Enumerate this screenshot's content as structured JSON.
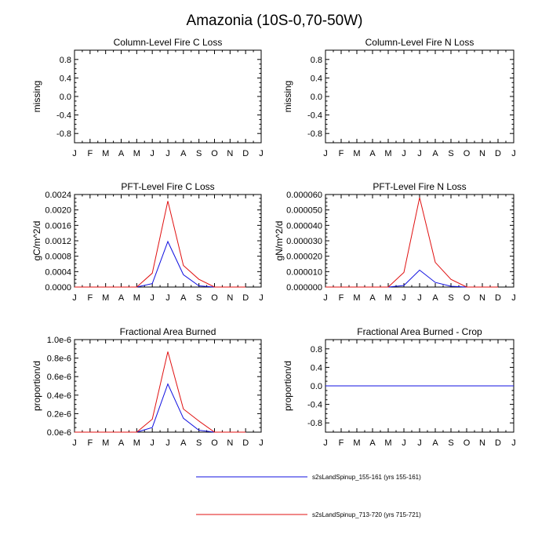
{
  "main_title": "Amazonia (10S-0,70-50W)",
  "months": [
    "J",
    "F",
    "M",
    "A",
    "M",
    "J",
    "J",
    "A",
    "S",
    "O",
    "N",
    "D",
    "J"
  ],
  "colors": {
    "series1": "#1010e0",
    "series2": "#e01010",
    "axis": "#000000"
  },
  "legend": [
    {
      "label": "s2sLandSpinup_155-161 (yrs 155-161)",
      "color": "#1010e0"
    },
    {
      "label": "s2sLandSpinup_713-720 (yrs 715-721)",
      "color": "#e01010"
    }
  ],
  "chart_data": [
    {
      "type": "line",
      "title": "Column-Level Fire C Loss",
      "ylabel": "missing",
      "ylim": [
        -1.0,
        1.0
      ],
      "yticks": [
        -0.8,
        -0.4,
        0.0,
        0.4,
        0.8
      ],
      "ytick_labels": [
        "-0.8",
        "-0.4",
        "0.0",
        "0.4",
        "0.8"
      ],
      "series": []
    },
    {
      "type": "line",
      "title": "Column-Level Fire N Loss",
      "ylabel": "missing",
      "ylim": [
        -1.0,
        1.0
      ],
      "yticks": [
        -0.8,
        -0.4,
        0.0,
        0.4,
        0.8
      ],
      "ytick_labels": [
        "-0.8",
        "-0.4",
        "0.0",
        "0.4",
        "0.8"
      ],
      "series": []
    },
    {
      "type": "line",
      "title": "PFT-Level Fire C Loss",
      "ylabel": "gC/m^2/d",
      "ylim": [
        0,
        0.0024
      ],
      "yticks": [
        0,
        0.0004,
        0.0008,
        0.0012,
        0.0016,
        0.002,
        0.0024
      ],
      "ytick_labels": [
        "0.0000",
        "0.0004",
        "0.0008",
        "0.0012",
        "0.0016",
        "0.0020",
        "0.0024"
      ],
      "series": [
        {
          "name": "s2sLandSpinup_155-161 (yrs 155-161)",
          "values": [
            0,
            0,
            0,
            0,
            0,
            9e-05,
            0.00118,
            0.00032,
            3e-05,
            0,
            0,
            0
          ]
        },
        {
          "name": "s2sLandSpinup_713-720 (yrs 715-721)",
          "values": [
            0,
            0,
            0,
            0,
            0,
            0.00036,
            0.00223,
            0.00056,
            0.0002,
            0,
            0,
            0
          ]
        }
      ]
    },
    {
      "type": "line",
      "title": "PFT-Level Fire N Loss",
      "ylabel": "gN/m^2/d",
      "ylim": [
        0,
        6e-05
      ],
      "yticks": [
        0,
        1e-05,
        2e-05,
        3e-05,
        4e-05,
        5e-05,
        6e-05
      ],
      "ytick_labels": [
        "0.000000",
        "0.000010",
        "0.000020",
        "0.000030",
        "0.000040",
        "0.000050",
        "0.000060"
      ],
      "series": [
        {
          "name": "s2sLandSpinup_155-161 (yrs 155-161)",
          "values": [
            0,
            0,
            0,
            0,
            0,
            1e-06,
            1.1e-05,
            3e-06,
            5e-07,
            0,
            0,
            0
          ]
        },
        {
          "name": "s2sLandSpinup_713-720 (yrs 715-721)",
          "values": [
            0,
            0,
            0,
            0,
            0,
            9.5e-06,
            5.8e-05,
            1.6e-05,
            5e-06,
            0,
            0,
            0
          ]
        }
      ]
    },
    {
      "type": "line",
      "title": "Fractional Area Burned",
      "ylabel": "proportion/d",
      "ylim": [
        0,
        1.0
      ],
      "yticks": [
        0,
        0.2,
        0.4,
        0.6,
        0.8,
        1.0
      ],
      "ytick_labels": [
        "0.0e-6",
        "0.2e-6",
        "0.4e-6",
        "0.6e-6",
        "0.8e-6",
        "1.0e-6"
      ],
      "series": [
        {
          "name": "s2sLandSpinup_155-161 (yrs 155-161)",
          "values": [
            0,
            0,
            0,
            0,
            0,
            0.05,
            0.52,
            0.15,
            0.02,
            0,
            0,
            0
          ]
        },
        {
          "name": "s2sLandSpinup_713-720 (yrs 715-721)",
          "values": [
            0,
            0,
            0,
            0,
            0,
            0.14,
            0.87,
            0.25,
            0.12,
            0,
            0,
            0
          ]
        }
      ]
    },
    {
      "type": "line",
      "title": "Fractional Area Burned - Crop",
      "ylabel": "proportion/d",
      "ylim": [
        -1.0,
        1.0
      ],
      "yticks": [
        -0.8,
        -0.4,
        0.0,
        0.4,
        0.8
      ],
      "ytick_labels": [
        "-0.8",
        "-0.4",
        "0.0",
        "0.4",
        "0.8"
      ],
      "series": [
        {
          "name": "s2sLandSpinup_155-161 (yrs 155-161)",
          "values": [
            0,
            0,
            0,
            0,
            0,
            0,
            0,
            0,
            0,
            0,
            0,
            0
          ]
        }
      ]
    }
  ]
}
